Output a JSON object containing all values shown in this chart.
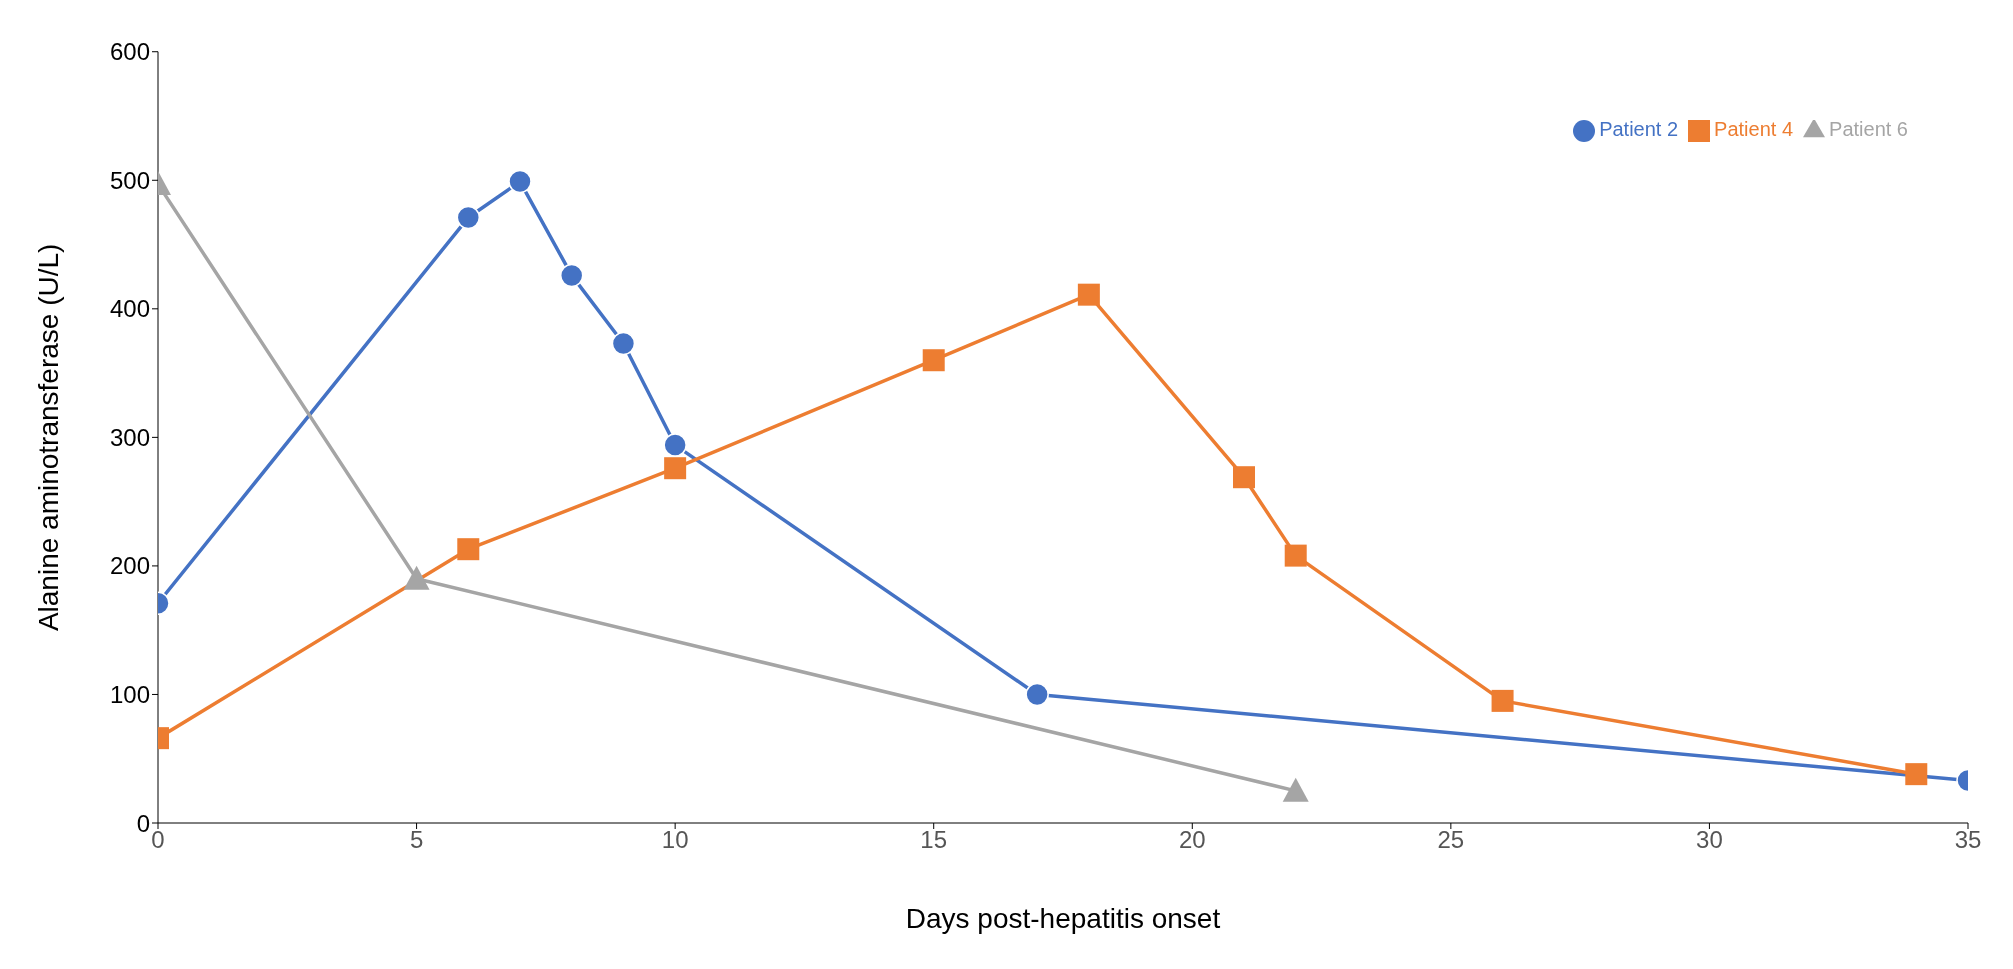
{
  "chart_data": {
    "type": "line",
    "xlabel": "Days post-hepatitis onset",
    "ylabel": "Alanine aminotransferase (U/L)",
    "xlim": [
      0,
      35
    ],
    "xticks": [
      0,
      5,
      10,
      15,
      20,
      25,
      30,
      35
    ],
    "ylim": [
      0,
      600
    ],
    "yticks": [
      0,
      100,
      200,
      300,
      400,
      500,
      600
    ],
    "grid": false,
    "legend": "top right",
    "line_style": "solid",
    "series": [
      {
        "name": "Patient 2",
        "color": "#4472c4",
        "marker": "circle",
        "x": [
          0,
          6,
          7,
          8,
          9,
          10,
          17,
          35
        ],
        "values": [
          171,
          471,
          499,
          426,
          373,
          294,
          100,
          33
        ]
      },
      {
        "name": "Patient 4",
        "color": "#ed7d31",
        "marker": "square",
        "x": [
          0,
          6,
          10,
          15,
          18,
          21,
          22,
          26,
          34
        ],
        "values": [
          66,
          213,
          276,
          360,
          411,
          269,
          208,
          95,
          38
        ]
      },
      {
        "name": "Patient 6",
        "color": "#a5a5a5",
        "marker": "triangle",
        "x": [
          0,
          5,
          22
        ],
        "values": [
          497,
          190,
          25
        ]
      }
    ]
  }
}
